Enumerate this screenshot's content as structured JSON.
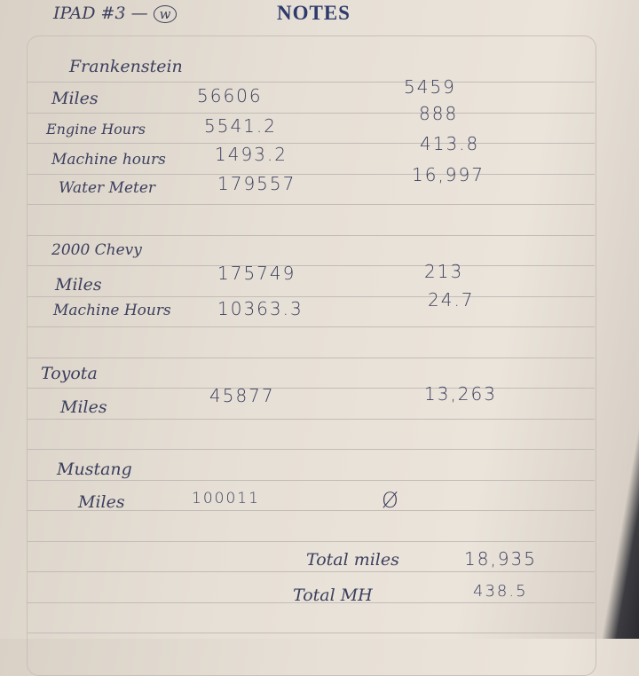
{
  "header": {
    "label": "IPAD #3 —",
    "circled": "w",
    "title": "NOTES"
  },
  "sections": [
    {
      "name": "Frankenstein",
      "rows": [
        {
          "label": "Miles",
          "value": "56606",
          "delta": "5459"
        },
        {
          "label": "Engine Hours",
          "value": "5541.2",
          "delta": "888"
        },
        {
          "label": "Machine hours",
          "value": "1493.2",
          "delta": "413.8"
        },
        {
          "label": "Water Meter",
          "value": "179557",
          "delta": "16,997"
        }
      ]
    },
    {
      "name": "2000 Chevy",
      "rows": [
        {
          "label": "Miles",
          "value": "175749",
          "delta": "213"
        },
        {
          "label": "Machine Hours",
          "value": "10363.3",
          "delta": "24.7"
        }
      ]
    },
    {
      "name": "Toyota",
      "rows": [
        {
          "label": "Miles",
          "value": "45877",
          "delta": "13,263"
        }
      ]
    },
    {
      "name": "Mustang",
      "rows": [
        {
          "label": "Miles",
          "value": "100011",
          "delta": "Ø"
        }
      ]
    }
  ],
  "totals": [
    {
      "label": "Total miles",
      "value": "18,935"
    },
    {
      "label": "Total MH",
      "value": "438.5"
    }
  ]
}
